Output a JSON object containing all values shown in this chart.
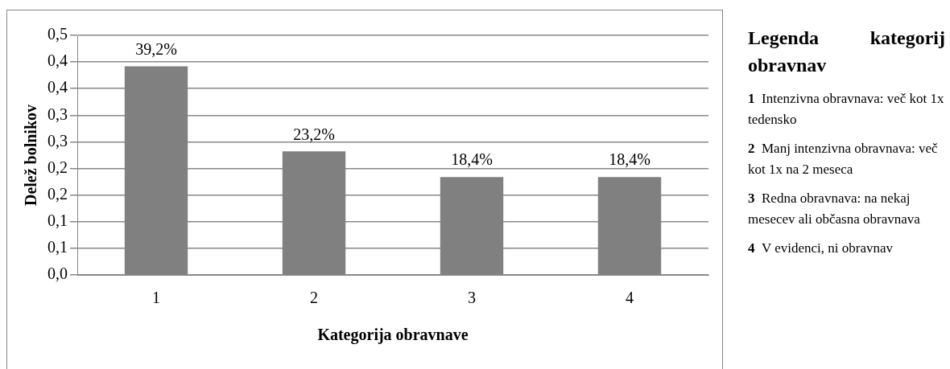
{
  "chart_data": {
    "type": "bar",
    "xlabel": "Kategorija obravnave",
    "ylabel": "Delež bolnikov",
    "categories": [
      "1",
      "2",
      "3",
      "4"
    ],
    "values": [
      0.392,
      0.232,
      0.184,
      0.184
    ],
    "value_labels": [
      "39,2%",
      "23,2%",
      "18,4%",
      "18,4%"
    ],
    "color": "#808080",
    "ylim": [
      0,
      0.45
    ],
    "yticks": [
      {
        "value": 0,
        "label": "0,0"
      },
      {
        "value": 0.05,
        "label": "0,1"
      },
      {
        "value": 0.1,
        "label": "0,1"
      },
      {
        "value": 0.15,
        "label": "0,2"
      },
      {
        "value": 0.2,
        "label": "0,2"
      },
      {
        "value": 0.25,
        "label": "0,3"
      },
      {
        "value": 0.3,
        "label": "0,3"
      },
      {
        "value": 0.35,
        "label": "0,4"
      },
      {
        "value": 0.4,
        "label": "0,4"
      },
      {
        "value": 0.45,
        "label": "0,5"
      }
    ],
    "grid": "y",
    "annotations": [
      "Legenda kategorij obravnav",
      "1 Intenzivna obravnava: več kot 1x tedensko",
      "2 Manj intenzivna obravnava: več kot 1x na 2 meseca",
      "3 Redna obravnava: na nekaj mesecev ali občasna obravnava",
      "4 V evidenci, ni obravnav"
    ]
  }
}
